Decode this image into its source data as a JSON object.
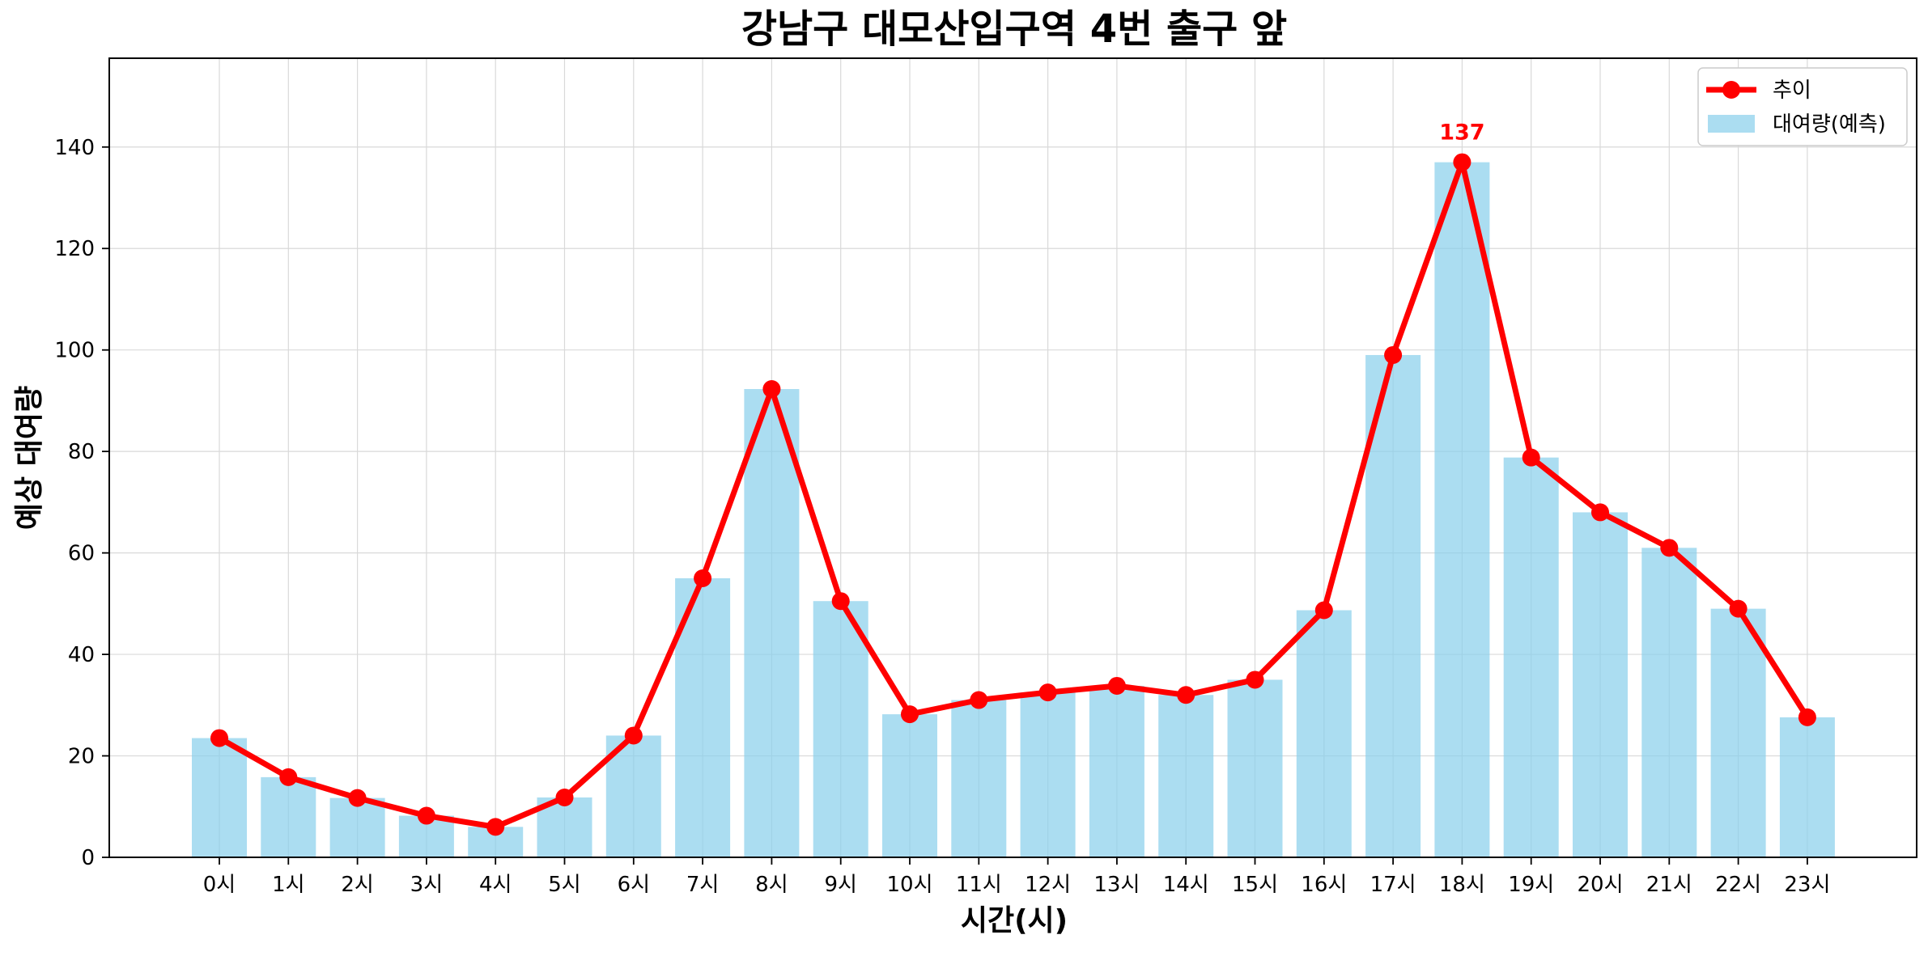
{
  "chart_data": {
    "type": "bar",
    "title": "강남구 대모산입구역 4번 출구 앞",
    "xlabel": "시간(시)",
    "ylabel": "예상 대여량",
    "categories": [
      "0시",
      "1시",
      "2시",
      "3시",
      "4시",
      "5시",
      "6시",
      "7시",
      "8시",
      "9시",
      "10시",
      "11시",
      "12시",
      "13시",
      "14시",
      "15시",
      "16시",
      "17시",
      "18시",
      "19시",
      "20시",
      "21시",
      "22시",
      "23시"
    ],
    "ylim": [
      0,
      157.5
    ],
    "yticks": [
      0,
      20,
      40,
      60,
      80,
      100,
      120,
      140
    ],
    "grid": true,
    "legend_position": "top-right",
    "series": [
      {
        "name": "대여량(예측)",
        "kind": "bar",
        "color": "#87CEEB",
        "values": [
          23.5,
          15.8,
          11.7,
          8.2,
          6.0,
          11.8,
          24.0,
          55.0,
          92.3,
          50.5,
          28.2,
          31.0,
          32.5,
          33.8,
          32.0,
          35.0,
          48.7,
          99.0,
          137.0,
          78.8,
          68.0,
          61.0,
          49.0,
          27.6
        ]
      },
      {
        "name": "추이",
        "kind": "line",
        "color": "#FF0000",
        "values": [
          23.5,
          15.8,
          11.7,
          8.2,
          6.0,
          11.8,
          24.0,
          55.0,
          92.3,
          50.5,
          28.2,
          31.0,
          32.5,
          33.8,
          32.0,
          35.0,
          48.7,
          99.0,
          137.0,
          78.8,
          68.0,
          61.0,
          49.0,
          27.6
        ]
      }
    ],
    "annotations": [
      {
        "category": "18시",
        "value": 137,
        "text": "137",
        "color": "#FF0000"
      }
    ]
  }
}
